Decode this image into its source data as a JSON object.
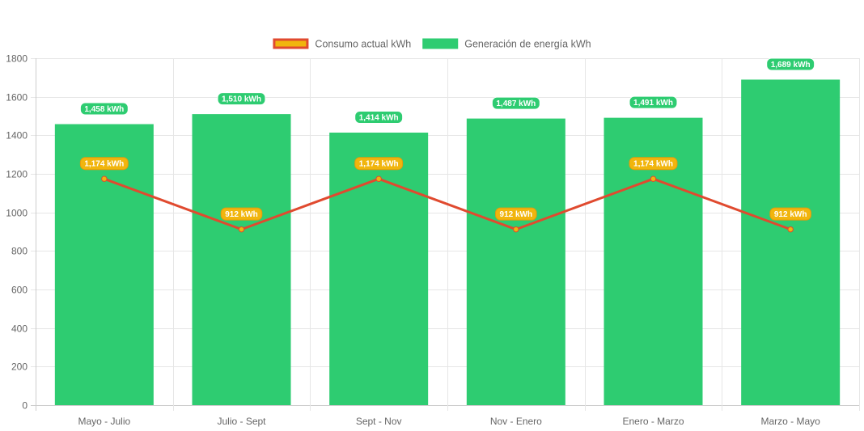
{
  "chart_data": {
    "type": "bar",
    "categories": [
      "Mayo - Julio",
      "Julio - Sept",
      "Sept - Nov",
      "Nov - Enero",
      "Enero - Marzo",
      "Marzo - Mayo"
    ],
    "series": [
      {
        "name": "Generación de energía kWh",
        "type": "bar",
        "color": "#2ecc71",
        "values": [
          1458,
          1510,
          1414,
          1487,
          1491,
          1689
        ],
        "labels": [
          "1,458 kWh",
          "1,510 kWh",
          "1,414 kWh",
          "1,487 kWh",
          "1,491 kWh",
          "1,689 kWh"
        ]
      },
      {
        "name": "Consumo actual kWh",
        "type": "line",
        "color": "#f1b50d",
        "border_color": "#e04a2f",
        "values": [
          1174,
          912,
          1174,
          912,
          1174,
          912
        ],
        "labels": [
          "1,174 kWh",
          "912 kWh",
          "1,174 kWh",
          "912 kWh",
          "1,174 kWh",
          "912 kWh"
        ]
      }
    ],
    "y_ticks": [
      "0",
      "200",
      "400",
      "600",
      "800",
      "1000",
      "1200",
      "1400",
      "1600",
      "1800"
    ],
    "ylim": [
      0,
      1800
    ],
    "grid": true,
    "legend": "top-center",
    "title": "",
    "xlabel": "",
    "ylabel": ""
  }
}
